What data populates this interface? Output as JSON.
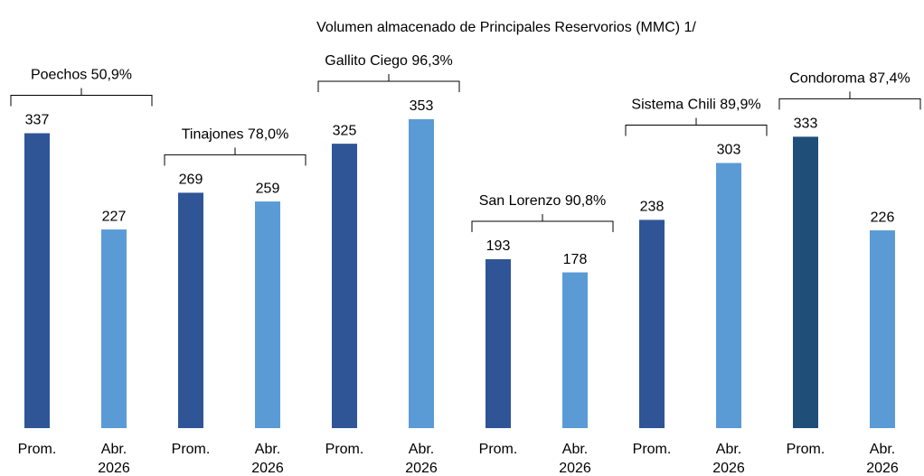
{
  "chart_data": {
    "type": "bar",
    "title": "Volumen almacenado de Principales Reservorios   (MMC) 1/",
    "categories": [
      "Poechos 50,9%",
      "Tinajones 78,0%",
      "Gallito Ciego 96,3%",
      "San Lorenzo 90,8%",
      "Sistema Chili 89,9%",
      "Condoroma 87,4%"
    ],
    "series": [
      {
        "name": "Prom.",
        "color": "#2f5597",
        "colors": [
          "#2f5597",
          "#2f5597",
          "#2f5597",
          "#2f5597",
          "#2f5597",
          "#1f4e79"
        ],
        "values": [
          337,
          269,
          325,
          193,
          238,
          333
        ]
      },
      {
        "name": "Abr. 2026",
        "color": "#5b9bd5",
        "values": [
          227,
          259,
          353,
          178,
          303,
          226
        ]
      }
    ]
  }
}
